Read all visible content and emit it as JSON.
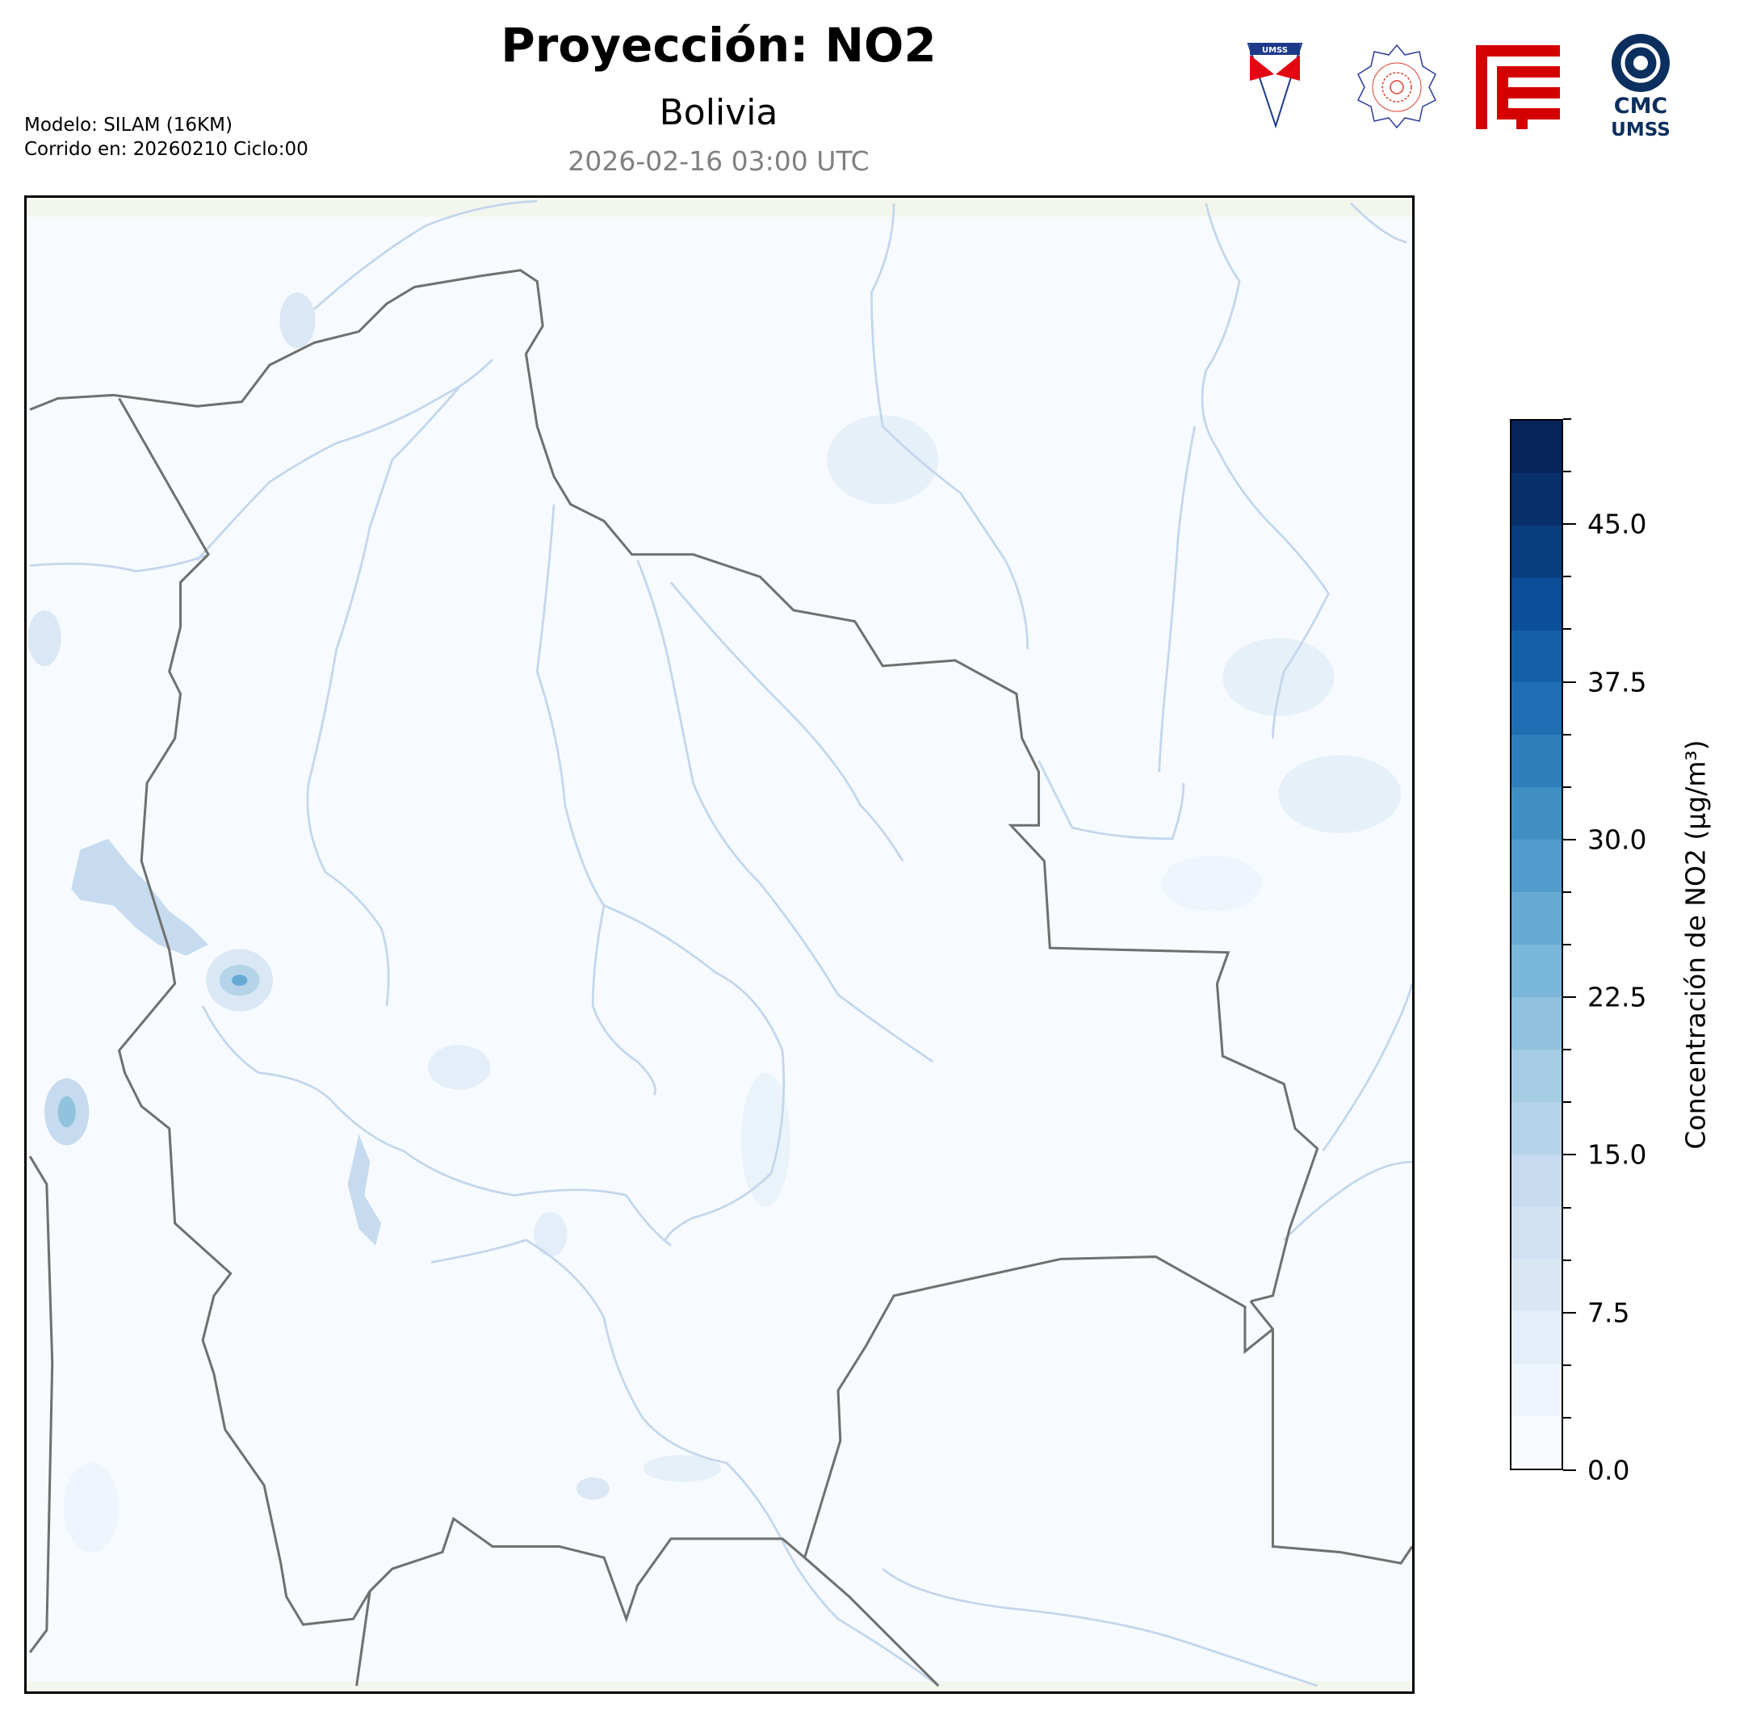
{
  "header": {
    "title": "Proyección: NO2",
    "subtitle": "Bolivia",
    "datetime": "2026-02-16 03:00 UTC",
    "model_line": "Modelo: SILAM (16KM)",
    "run_line": "Corrido en: 20260210 Ciclo:00"
  },
  "logos": [
    {
      "name": "umss-shield-logo",
      "text": "UMSS",
      "colors": [
        "#e30613",
        "#1d3a8a"
      ]
    },
    {
      "name": "departamento-fisica-seal-logo",
      "text": "DEPARTAMENTO DE FISICA",
      "colors": [
        "#d94030",
        "#2b3a9a"
      ]
    },
    {
      "name": "fcyt-logo",
      "colors": [
        "#d40000"
      ]
    },
    {
      "name": "cmc-umss-logo",
      "text": "CMC UMSS",
      "colors": [
        "#0b2f5e"
      ]
    }
  ],
  "map": {
    "region": "Bolivia",
    "background_color": "#f7fbff",
    "border_color": "#707070",
    "river_color": "#c3d6ec"
  },
  "colorbar": {
    "label": "Concentración de NO2 (µg/m³)",
    "min": 0,
    "max": 50,
    "step": 2.5,
    "tick_labels": [
      "0.0",
      "7.5",
      "15.0",
      "22.5",
      "30.0",
      "37.5",
      "45.0"
    ],
    "colors": [
      "#f7fbff",
      "#eef5fc",
      "#e3eef9",
      "#d9e7f5",
      "#cfe1f2",
      "#c6dbef",
      "#b6d4e9",
      "#a6cde4",
      "#91c3de",
      "#7bb7da",
      "#66abd4",
      "#519ccc",
      "#3f8fc5",
      "#2e7ebc",
      "#1f6eb3",
      "#1460a8",
      "#0a4f98",
      "#083e80",
      "#08306b",
      "#08245a"
    ]
  }
}
